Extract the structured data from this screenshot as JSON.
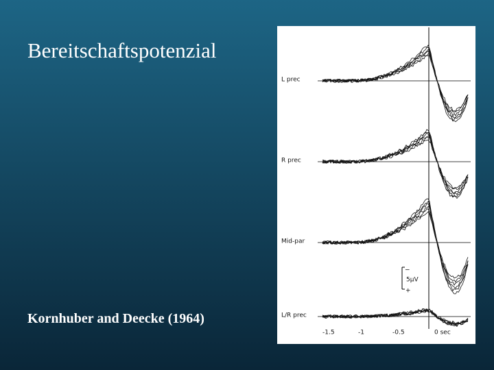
{
  "slide": {
    "title": "Bereitschaftspotenzial",
    "citation": "Kornhuber and Deecke (1964)"
  },
  "figure": {
    "traces": [
      "L prec",
      "R prec",
      "Mid-par",
      "L/R prec"
    ],
    "time_labels": [
      "-1.5",
      "-1",
      "-0.5",
      "0 sec"
    ],
    "scale": {
      "minus": "−",
      "label": "5μV",
      "plus": "+"
    }
  }
}
